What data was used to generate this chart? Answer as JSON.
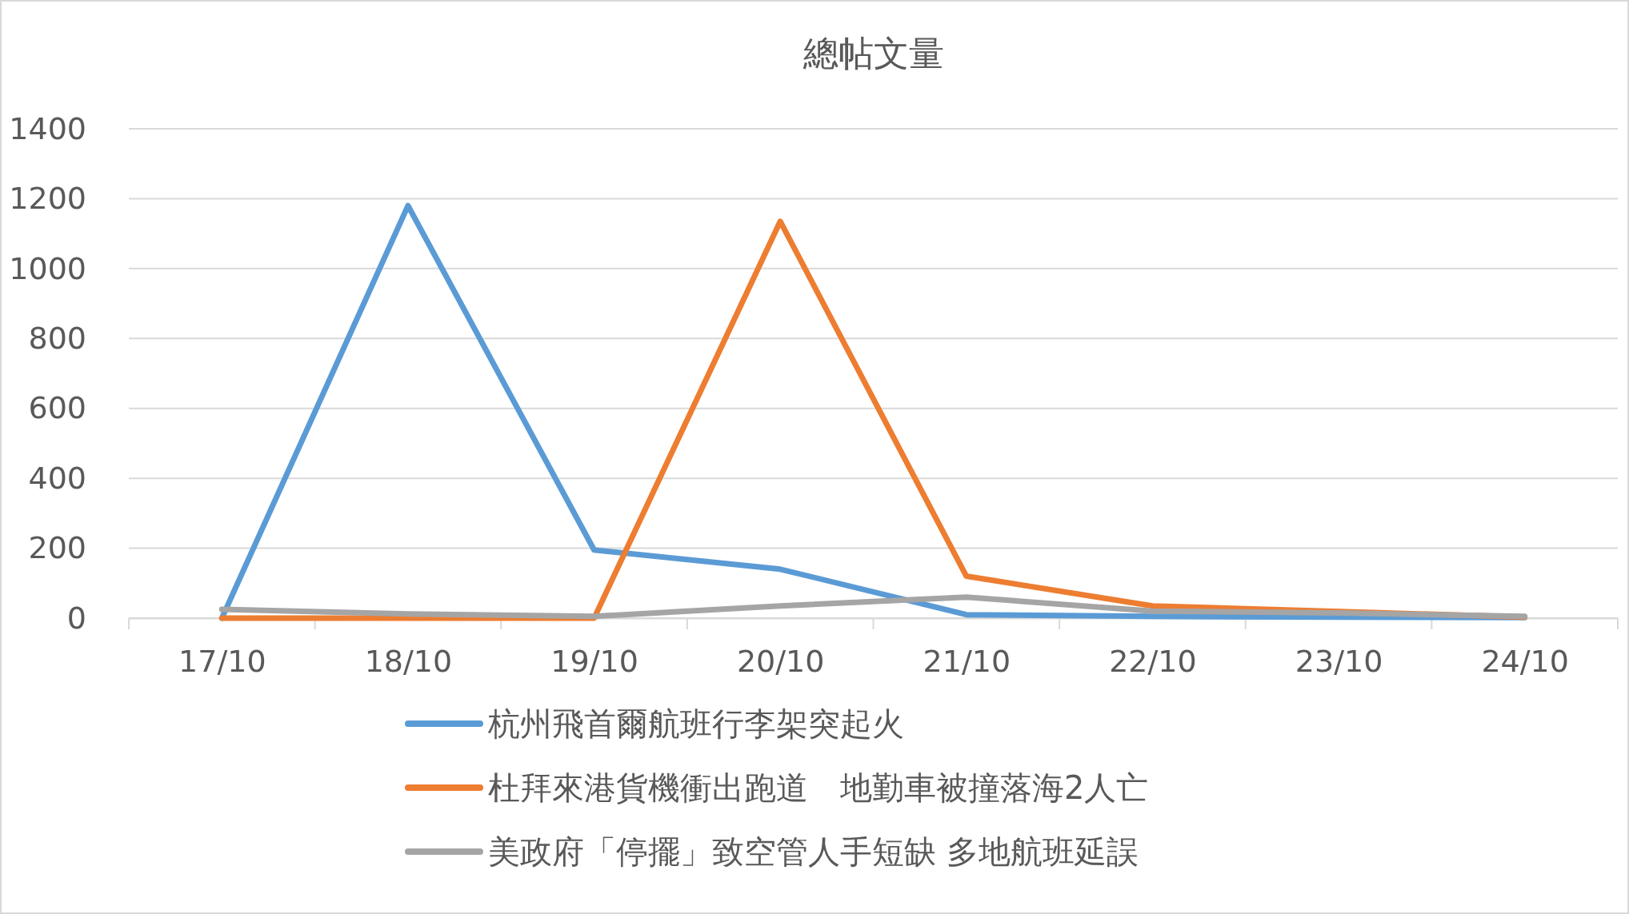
{
  "chart_data": {
    "type": "line",
    "title": "總帖文量",
    "categories": [
      "17/10",
      "18/10",
      "19/10",
      "20/10",
      "21/10",
      "22/10",
      "23/10",
      "24/10"
    ],
    "series": [
      {
        "name": "杭州飛首爾航班行李架突起火",
        "color": "#5b9bd5",
        "values": [
          0,
          1180,
          195,
          140,
          10,
          5,
          3,
          2
        ]
      },
      {
        "name": "杜拜來港貨機衝出跑道　地勤車被撞落海2人亡",
        "color": "#ed7d31",
        "values": [
          0,
          0,
          0,
          1135,
          120,
          35,
          null,
          3
        ]
      },
      {
        "name": "美政府「停擺」致空管人手短缺 多地航班延誤",
        "color": "#a5a5a5",
        "values": [
          25,
          12,
          5,
          35,
          60,
          20,
          15,
          5
        ]
      }
    ],
    "ylim": [
      0,
      1400
    ],
    "yticks": [
      0,
      200,
      400,
      600,
      800,
      1000,
      1200,
      1400
    ],
    "grid": "y",
    "legend": "bottom",
    "marker": "none",
    "line_style": "solid"
  }
}
